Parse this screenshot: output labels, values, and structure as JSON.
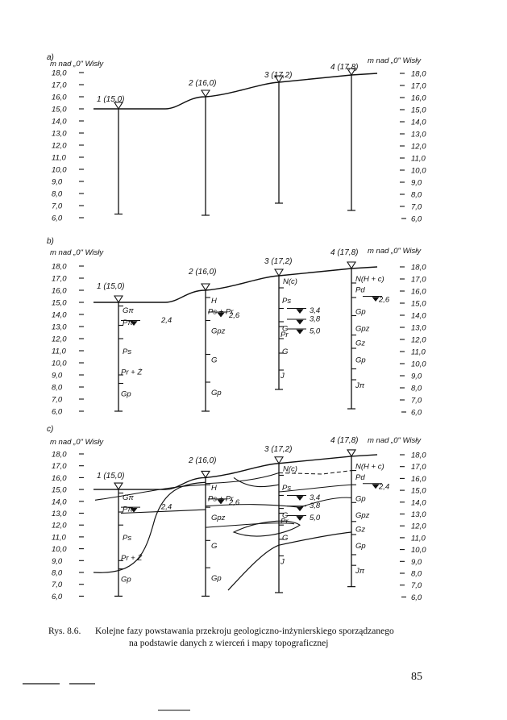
{
  "axis": {
    "left_title": "m nad „0\" Wisły",
    "right_title": "m nad „0\" Wisły",
    "ticks": [
      "18,0",
      "17,0",
      "16,0",
      "15,0",
      "14,0",
      "13,0",
      "12,0",
      "11,0",
      "10,0",
      "9,0",
      "8,0",
      "7,0",
      "6,0"
    ]
  },
  "panels": [
    {
      "label": "a)",
      "boreholes": [
        {
          "label": "1 (15,0)",
          "top": 15.0,
          "bottom": 6.3
        },
        {
          "label": "2 (16,0)",
          "top": 16.0,
          "bottom": 6.2
        },
        {
          "label": "3 (17,2)",
          "top": 17.2,
          "bottom": 7.2
        },
        {
          "label": "4 (17,8)",
          "top": 17.8,
          "bottom": 6.6
        }
      ],
      "layers": [],
      "water_levels": []
    },
    {
      "label": "b)",
      "boreholes": [
        {
          "label": "1 (15,0)",
          "top": 15.0,
          "bottom": 6.0
        },
        {
          "label": "2 (16,0)",
          "top": 16.0,
          "bottom": 6.0
        },
        {
          "label": "3 (17,2)",
          "top": 17.2,
          "bottom": 7.8
        },
        {
          "label": "4 (17,8)",
          "top": 17.8,
          "bottom": 6.2
        }
      ],
      "layers": [
        "Gπ",
        "Pπ",
        "Ps",
        "Pr + Ż",
        "Gp",
        "H",
        "Ps + Pr",
        "Gpz",
        "G",
        "Gp",
        "N(c)",
        "Ps",
        "G",
        "Pr",
        "G",
        "J",
        "N(H + c)",
        "Pd",
        "Gp",
        "Gpz",
        "Gz",
        "Gp",
        "Jπ"
      ],
      "water_levels": [
        "2,4",
        "2,6",
        "3,4",
        "3,8",
        "5,0",
        "2,6"
      ]
    },
    {
      "label": "c)",
      "boreholes": [
        {
          "label": "1 (15,0)",
          "top": 15.0,
          "bottom": 6.0
        },
        {
          "label": "2 (16,0)",
          "top": 16.0,
          "bottom": 6.0
        },
        {
          "label": "3 (17,2)",
          "top": 17.2,
          "bottom": 6.3
        },
        {
          "label": "4 (17,8)",
          "top": 17.8,
          "bottom": 6.8
        }
      ],
      "layers": [
        "Gπ",
        "Pπ",
        "Ps",
        "Pr + Ż",
        "Gp",
        "H",
        "Ps + Pr",
        "Gpz",
        "G",
        "Gp",
        "N(c)",
        "Ps",
        "G",
        "Pr",
        "G",
        "J",
        "N(H + c)",
        "Pd",
        "Gp",
        "Gpz",
        "Gz",
        "Gp",
        "Jπ"
      ],
      "water_levels": [
        "2,4",
        "2,6",
        "3,4",
        "3,8",
        "5,0",
        "2,4"
      ]
    }
  ],
  "caption": {
    "lead": "Rys.  8.6.",
    "text": "Kolejne  fazy  powstawania  przekroju  geologiczno-inżynierskiego  sporządzanego",
    "line2": "na podstawie danych z wierceń i mapy topograficznej"
  },
  "page_number": "85"
}
